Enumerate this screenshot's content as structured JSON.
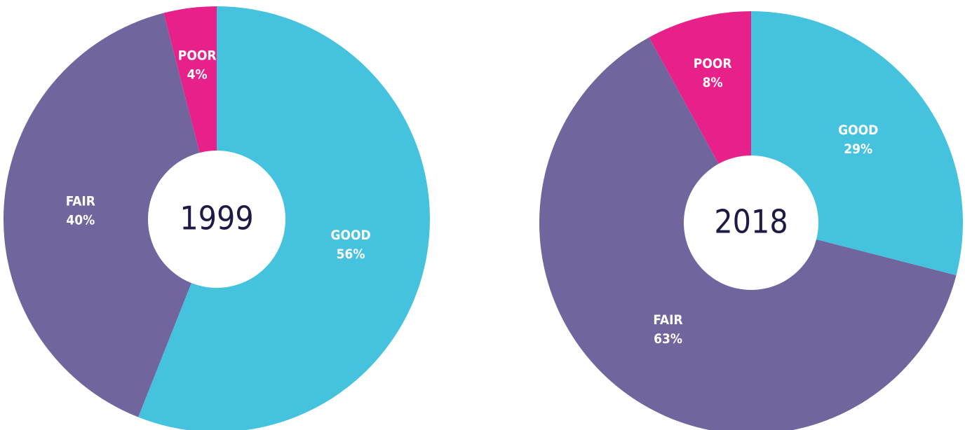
{
  "chart_data": [
    {
      "type": "pie",
      "title": "1999",
      "categories": [
        "GOOD",
        "FAIR",
        "POOR"
      ],
      "values": [
        56,
        40,
        4
      ],
      "value_labels": [
        "56%",
        "40%",
        "4%"
      ],
      "colors": [
        "#45c3de",
        "#71659e",
        "#e8218a"
      ]
    },
    {
      "type": "pie",
      "title": "2018",
      "categories": [
        "GOOD",
        "FAIR",
        "POOR"
      ],
      "values": [
        29,
        63,
        8
      ],
      "value_labels": [
        "29%",
        "63%",
        "8%"
      ],
      "colors": [
        "#45c3de",
        "#71659e",
        "#e8218a"
      ]
    }
  ]
}
